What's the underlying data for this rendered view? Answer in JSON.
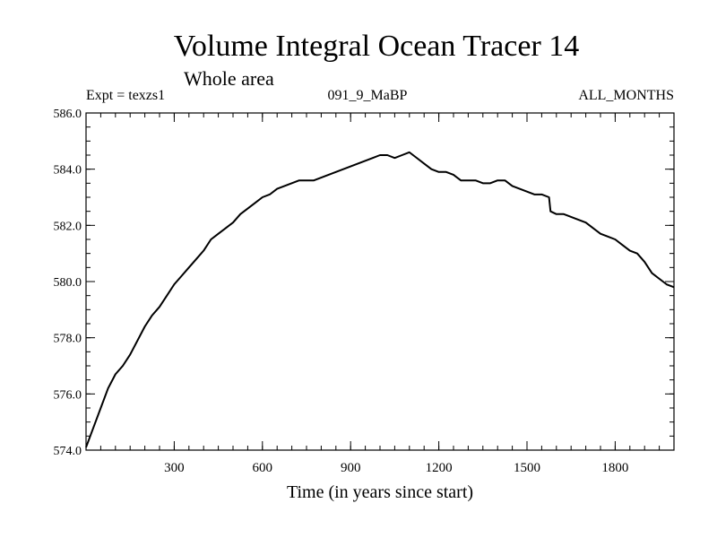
{
  "chart_data": {
    "type": "line",
    "title": "Volume Integral Ocean Tracer 14",
    "subtitle": "Whole area",
    "experiment": "Expt = texzs1",
    "period": "091_9_MaBP",
    "months": "ALL_MONTHS",
    "xlabel": "Time (in years since start)",
    "ylabel": "",
    "xlim": [
      0,
      2000
    ],
    "ylim": [
      574.0,
      586.0
    ],
    "xticks": [
      300,
      600,
      900,
      1200,
      1500,
      1800
    ],
    "xtick_labels": [
      "300",
      "600",
      "900",
      "1200",
      "1500",
      "1800"
    ],
    "yticks": [
      574.0,
      576.0,
      578.0,
      580.0,
      582.0,
      584.0,
      586.0
    ],
    "ytick_labels": [
      "574.0",
      "576.0",
      "578.0",
      "580.0",
      "582.0",
      "584.0",
      "586.0"
    ],
    "x_minor_step": 50,
    "y_minor_step": 0.5,
    "grid": false,
    "series": [
      {
        "name": "",
        "color": "#000000",
        "x": [
          0,
          25,
          50,
          75,
          100,
          125,
          150,
          175,
          200,
          225,
          250,
          275,
          300,
          325,
          350,
          375,
          400,
          425,
          450,
          475,
          500,
          525,
          550,
          575,
          600,
          625,
          650,
          675,
          700,
          725,
          750,
          775,
          800,
          825,
          850,
          875,
          900,
          925,
          950,
          975,
          1000,
          1025,
          1050,
          1075,
          1100,
          1125,
          1150,
          1175,
          1200,
          1225,
          1250,
          1275,
          1300,
          1325,
          1350,
          1375,
          1400,
          1425,
          1450,
          1475,
          1500,
          1525,
          1550,
          1575,
          1580,
          1600,
          1625,
          1650,
          1675,
          1700,
          1725,
          1750,
          1775,
          1800,
          1825,
          1850,
          1875,
          1900,
          1925,
          1950,
          1975,
          2000
        ],
        "values": [
          574.1,
          574.8,
          575.5,
          576.2,
          576.7,
          577.0,
          577.4,
          577.9,
          578.4,
          578.8,
          579.1,
          579.5,
          579.9,
          580.2,
          580.5,
          580.8,
          581.1,
          581.5,
          581.7,
          581.9,
          582.1,
          582.4,
          582.6,
          582.8,
          583.0,
          583.1,
          583.3,
          583.4,
          583.5,
          583.6,
          583.6,
          583.6,
          583.7,
          583.8,
          583.9,
          584.0,
          584.1,
          584.2,
          584.3,
          584.4,
          584.5,
          584.5,
          584.4,
          584.5,
          584.6,
          584.4,
          584.2,
          584.0,
          583.9,
          583.9,
          583.8,
          583.6,
          583.6,
          583.6,
          583.5,
          583.5,
          583.6,
          583.6,
          583.4,
          583.3,
          583.2,
          583.1,
          583.1,
          583.0,
          582.5,
          582.4,
          582.4,
          582.3,
          582.2,
          582.1,
          581.9,
          581.7,
          581.6,
          581.5,
          581.3,
          581.1,
          581.0,
          580.7,
          580.3,
          580.1,
          579.9,
          579.8
        ]
      }
    ]
  }
}
